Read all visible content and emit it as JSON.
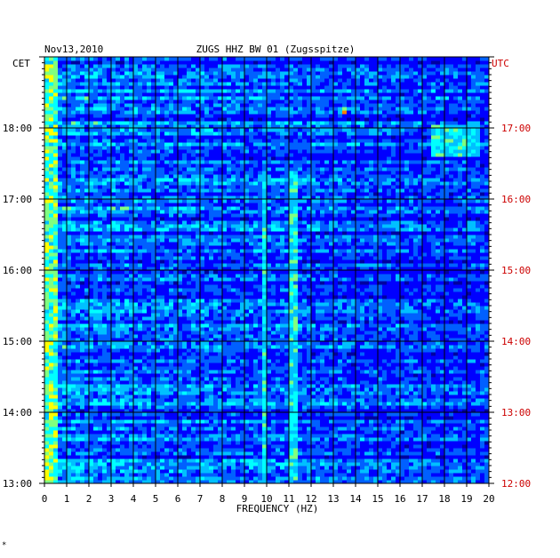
{
  "chart_data": {
    "type": "heatmap",
    "date": "Nov13,2010",
    "title": "ZUGS HHZ BW 01 (Zugsspitze)",
    "xlabel": "FREQUENCY (HZ)",
    "left_axis_label": "CET",
    "right_axis_label": "UTC",
    "xlim": [
      0,
      20
    ],
    "x_ticks": [
      "0",
      "1",
      "2",
      "3",
      "4",
      "5",
      "6",
      "7",
      "8",
      "9",
      "10",
      "11",
      "12",
      "13",
      "14",
      "15",
      "16",
      "17",
      "18",
      "19",
      "20"
    ],
    "ylim_cet_hours": [
      13.0,
      19.0
    ],
    "cet_ticks": [
      "13:00",
      "14:00",
      "15:00",
      "16:00",
      "17:00",
      "18:00"
    ],
    "utc_ticks": [
      "12:00",
      "13:00",
      "14:00",
      "15:00",
      "16:00",
      "17:00"
    ],
    "grid": true,
    "colormap": [
      "#0000a0",
      "#0000ff",
      "#0060ff",
      "#00c0ff",
      "#00ffff",
      "#80ff80",
      "#ffff00",
      "#ff8000",
      "#ff0000"
    ],
    "features": [
      {
        "band_hz": [
          0.1,
          0.5
        ],
        "time_cet": [
          13.0,
          19.0
        ],
        "level": 0.75
      },
      {
        "band_hz": [
          9.8,
          10.0
        ],
        "time_cet": [
          13.0,
          17.4
        ],
        "level": 0.6
      },
      {
        "band_hz": [
          11.0,
          11.3
        ],
        "time_cet": [
          13.0,
          17.4
        ],
        "level": 0.6
      },
      {
        "band_hz": [
          17.5,
          19.5
        ],
        "time_cet": [
          17.6,
          18.05
        ],
        "level": 0.6
      },
      {
        "band_hz": [
          13.4,
          13.6
        ],
        "time_cet": [
          18.2,
          18.3
        ],
        "level": 0.9
      }
    ],
    "marker": "*"
  }
}
